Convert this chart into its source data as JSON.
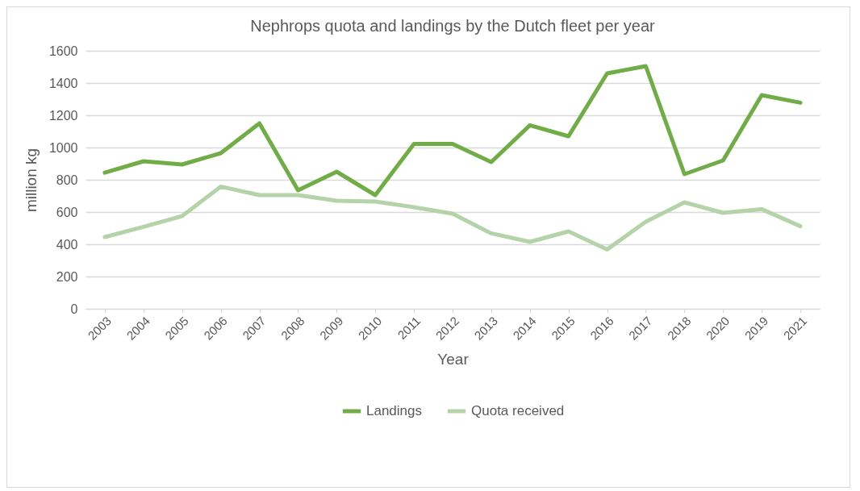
{
  "chart_data": {
    "type": "line",
    "title": "Nephrops quota and landings by the Dutch fleet per year",
    "xlabel": "Year",
    "ylabel": "million kg",
    "categories": [
      "2003",
      "2004",
      "2005",
      "2006",
      "2007",
      "2008",
      "2009",
      "2010",
      "2011",
      "2012",
      "2013",
      "2014",
      "2015",
      "2016",
      "2017",
      "2018",
      "2020",
      "2019",
      "2021"
    ],
    "series": [
      {
        "name": "Landings",
        "color": "#70ad47",
        "values": [
          844,
          915,
          895,
          965,
          1150,
          735,
          850,
          705,
          1022,
          1022,
          910,
          1138,
          1070,
          1460,
          1505,
          835,
          920,
          1325,
          1278
        ]
      },
      {
        "name": "Quota received",
        "color": "#b4d3a8",
        "values": [
          445,
          508,
          575,
          758,
          705,
          705,
          670,
          665,
          630,
          590,
          468,
          415,
          480,
          368,
          540,
          660,
          595,
          618,
          512
        ]
      }
    ],
    "ylim": [
      0,
      1600
    ],
    "yticks": [
      0,
      200,
      400,
      600,
      800,
      1000,
      1200,
      1400,
      1600
    ],
    "grid": "y",
    "legend": "bottom",
    "marker": "none",
    "line_style": "solid"
  }
}
